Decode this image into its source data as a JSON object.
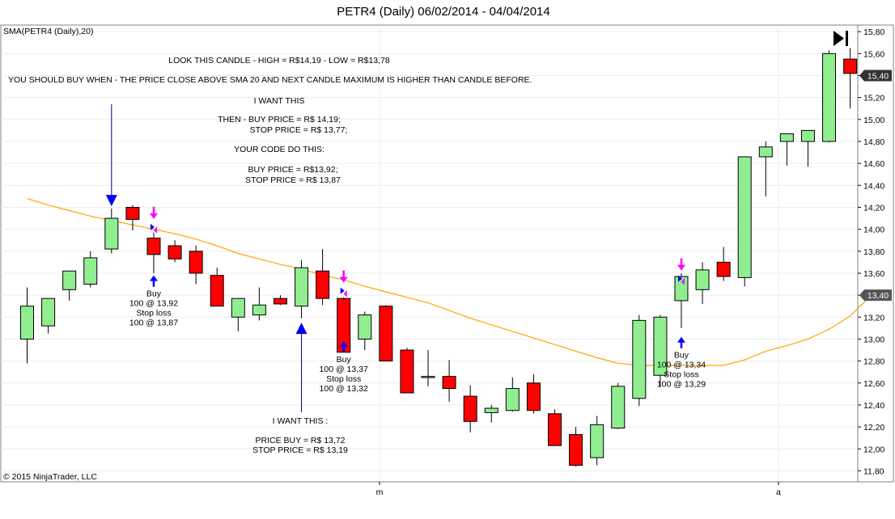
{
  "chart_data": {
    "type": "candlestick",
    "title": "PETR4 (Daily)  06/02/2014 - 04/04/2014",
    "indicator_label": "SMA(PETR4 (Daily),20)",
    "copyright": "© 2015 NinjaTrader, LLC",
    "ylim": [
      11.7,
      15.9
    ],
    "y_ticks": [
      "15,80",
      "15,60",
      "15,40",
      "15,20",
      "15,00",
      "14,80",
      "14,60",
      "14,40",
      "14,20",
      "14,00",
      "13,80",
      "13,60",
      "13,40",
      "13,20",
      "13,00",
      "12,80",
      "12,60",
      "12,40",
      "12,20",
      "12,00",
      "11,80"
    ],
    "x_ticks": [
      "m",
      "a"
    ],
    "last_price_label": "15,40",
    "sma_price_label": "13,40",
    "colors": {
      "up": "#90EE90",
      "down": "#FF0000",
      "sma": "#FFA500",
      "arrow_blue": "#0000FF",
      "arrow_magenta": "#FF00FF"
    },
    "candles": [
      {
        "o": 13.0,
        "h": 13.47,
        "l": 12.78,
        "c": 13.3
      },
      {
        "o": 13.12,
        "h": 13.37,
        "l": 13.05,
        "c": 13.37
      },
      {
        "o": 13.45,
        "h": 13.62,
        "l": 13.35,
        "c": 13.62
      },
      {
        "o": 13.5,
        "h": 13.8,
        "l": 13.47,
        "c": 13.74
      },
      {
        "o": 13.82,
        "h": 14.19,
        "l": 13.78,
        "c": 14.1
      },
      {
        "o": 14.2,
        "h": 14.22,
        "l": 13.99,
        "c": 14.09
      },
      {
        "o": 13.92,
        "h": 13.97,
        "l": 13.6,
        "c": 13.77
      },
      {
        "o": 13.85,
        "h": 13.9,
        "l": 13.7,
        "c": 13.73
      },
      {
        "o": 13.8,
        "h": 13.85,
        "l": 13.5,
        "c": 13.6
      },
      {
        "o": 13.58,
        "h": 13.65,
        "l": 13.3,
        "c": 13.3
      },
      {
        "o": 13.2,
        "h": 13.37,
        "l": 13.07,
        "c": 13.37
      },
      {
        "o": 13.22,
        "h": 13.47,
        "l": 13.17,
        "c": 13.31
      },
      {
        "o": 13.37,
        "h": 13.4,
        "l": 13.31,
        "c": 13.32
      },
      {
        "o": 13.3,
        "h": 13.72,
        "l": 13.19,
        "c": 13.65
      },
      {
        "o": 13.62,
        "h": 13.82,
        "l": 13.31,
        "c": 13.37
      },
      {
        "o": 13.37,
        "h": 13.38,
        "l": 12.88,
        "c": 12.88
      },
      {
        "o": 13.0,
        "h": 13.25,
        "l": 12.9,
        "c": 13.22
      },
      {
        "o": 13.3,
        "h": 13.31,
        "l": 12.8,
        "c": 12.8
      },
      {
        "o": 12.9,
        "h": 12.92,
        "l": 12.51,
        "c": 12.51
      },
      {
        "o": 12.65,
        "h": 12.9,
        "l": 12.57,
        "c": 12.66
      },
      {
        "o": 12.66,
        "h": 12.81,
        "l": 12.43,
        "c": 12.55
      },
      {
        "o": 12.48,
        "h": 12.58,
        "l": 12.15,
        "c": 12.25
      },
      {
        "o": 12.33,
        "h": 12.4,
        "l": 12.24,
        "c": 12.37
      },
      {
        "o": 12.35,
        "h": 12.65,
        "l": 12.34,
        "c": 12.55
      },
      {
        "o": 12.6,
        "h": 12.68,
        "l": 12.32,
        "c": 12.35
      },
      {
        "o": 12.32,
        "h": 12.36,
        "l": 12.03,
        "c": 12.03
      },
      {
        "o": 12.13,
        "h": 12.2,
        "l": 11.84,
        "c": 11.85
      },
      {
        "o": 11.92,
        "h": 12.3,
        "l": 11.85,
        "c": 12.22
      },
      {
        "o": 12.19,
        "h": 12.6,
        "l": 12.18,
        "c": 12.57
      },
      {
        "o": 12.46,
        "h": 13.22,
        "l": 12.39,
        "c": 13.17
      },
      {
        "o": 12.67,
        "h": 13.22,
        "l": 12.57,
        "c": 13.2
      },
      {
        "o": 13.35,
        "h": 13.6,
        "l": 13.1,
        "c": 13.57
      },
      {
        "o": 13.45,
        "h": 13.7,
        "l": 13.32,
        "c": 13.63
      },
      {
        "o": 13.7,
        "h": 13.84,
        "l": 13.53,
        "c": 13.57
      },
      {
        "o": 13.56,
        "h": 14.66,
        "l": 13.48,
        "c": 14.66
      },
      {
        "o": 14.66,
        "h": 14.8,
        "l": 14.3,
        "c": 14.75
      },
      {
        "o": 14.8,
        "h": 14.87,
        "l": 14.58,
        "c": 14.87
      },
      {
        "o": 14.8,
        "h": 14.9,
        "l": 14.57,
        "c": 14.9
      },
      {
        "o": 14.8,
        "h": 15.63,
        "l": 14.79,
        "c": 15.6
      },
      {
        "o": 15.55,
        "h": 15.65,
        "l": 15.1,
        "c": 15.42
      }
    ],
    "sma": [
      14.28,
      14.22,
      14.17,
      14.12,
      14.08,
      14.04,
      14.0,
      13.96,
      13.91,
      13.85,
      13.78,
      13.73,
      13.68,
      13.64,
      13.58,
      13.54,
      13.48,
      13.43,
      13.38,
      13.33,
      13.26,
      13.19,
      13.13,
      13.07,
      13.01,
      12.95,
      12.89,
      12.83,
      12.78,
      12.76,
      12.76,
      12.76,
      12.76,
      12.76,
      12.81,
      12.89,
      12.94,
      13.0,
      13.09,
      13.21,
      13.4
    ],
    "signals": [
      {
        "i": 6,
        "buy_arrow_y": 13.58,
        "mag_y": 14.19,
        "buy": [
          "Buy",
          "100 @ 13,92",
          "Stop loss",
          "100 @ 13,87"
        ]
      },
      {
        "i": 15,
        "buy_arrow_y": 12.98,
        "mag_y": 13.61,
        "buy": [
          "Buy",
          "100 @ 13,37",
          "Stop loss",
          "100 @ 13,32"
        ]
      },
      {
        "i": 31,
        "buy_arrow_y": 13.02,
        "mag_y": 13.72,
        "buy": [
          "Buy",
          "100 @ 13,34",
          "Stop loss",
          "100 @ 13,29"
        ]
      }
    ],
    "notes": {
      "line1": "LOOK THIS CANDLE - HIGH = R$14,19 - LOW = R$13,78",
      "line2": "YOU SHOULD BUY WHEN - THE PRICE CLOSE ABOVE SMA 20 AND NEXT CANDLE MAXIMUM IS HIGHER THAN CANDLE BEFORE.",
      "line3": "I WANT THIS",
      "line4": "THEN - BUY PRICE = R$ 14,19;",
      "line5": "STOP PRICE = R$ 13,77;",
      "line6": "YOUR CODE DO THIS:",
      "line7": "BUY PRICE = R$13,92;",
      "line8": "STOP PRICE = R$ 13,87",
      "lower1": "I WANT THIS :",
      "lower2": "PRICE BUY = R$ 13,72",
      "lower3": "STOP PRICE = R$ 13,19"
    }
  }
}
